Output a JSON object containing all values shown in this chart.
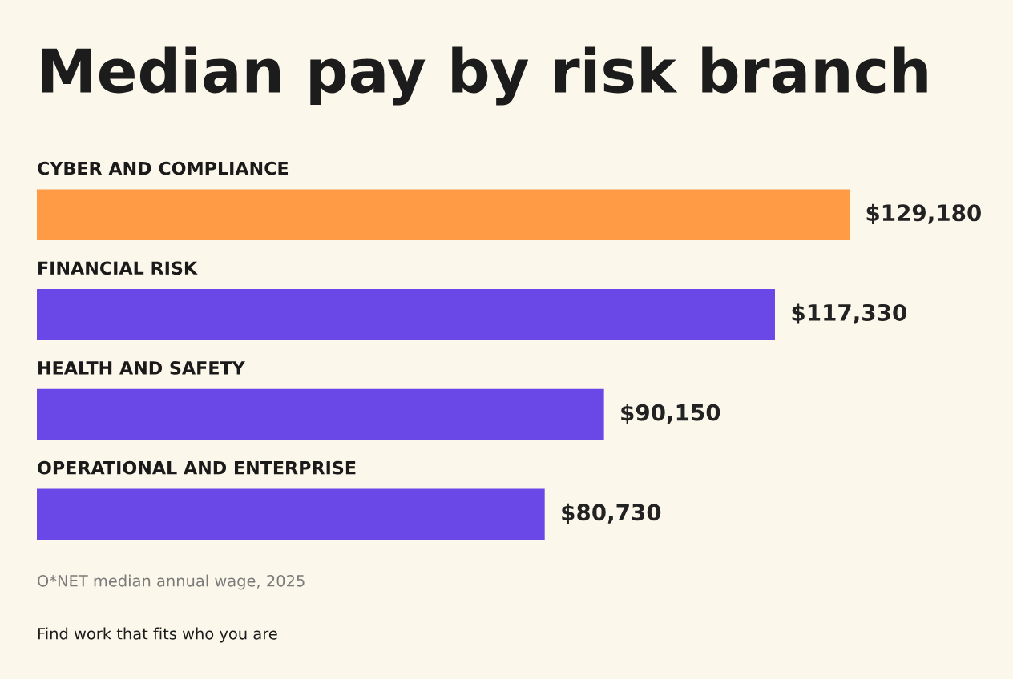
{
  "chart_data": {
    "type": "bar",
    "orientation": "horizontal",
    "title": "Median pay by risk branch",
    "categories": [
      "CYBER AND COMPLIANCE",
      "FINANCIAL RISK",
      "HEALTH AND SAFETY",
      "OPERATIONAL AND ENTERPRISE"
    ],
    "values": [
      129180,
      117330,
      90150,
      80730
    ],
    "colors": [
      "#ff9a45",
      "#6a48e8",
      "#6a48e8",
      "#6a48e8"
    ],
    "value_labels": [
      "$129,180",
      "$117,330",
      "$90,150",
      "$80,730"
    ],
    "annotations": [
      "O*NET median annual wage, 2025",
      "Find work that fits who you are"
    ]
  }
}
